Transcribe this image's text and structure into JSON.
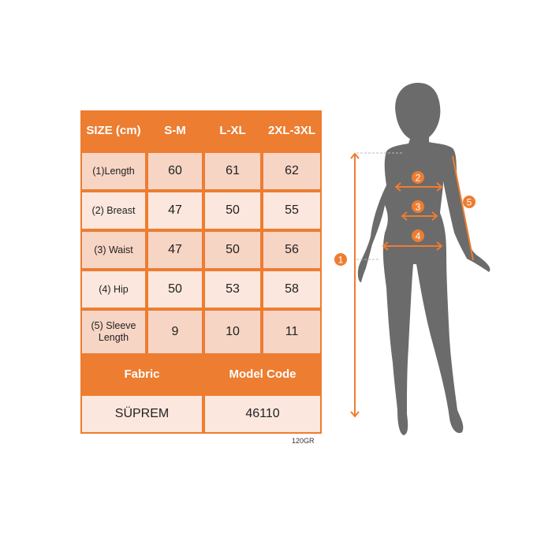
{
  "table": {
    "header": [
      "SIZE (cm)",
      "S-M",
      "L-XL",
      "2XL-3XL"
    ],
    "rows": [
      {
        "label": "(1)Length",
        "values": [
          "60",
          "61",
          "62"
        ]
      },
      {
        "label": "(2) Breast",
        "values": [
          "47",
          "50",
          "55"
        ]
      },
      {
        "label": "(3) Waist",
        "values": [
          "47",
          "50",
          "56"
        ]
      },
      {
        "label": "(4) Hip",
        "values": [
          "50",
          "53",
          "58"
        ]
      },
      {
        "label": "(5) Sleeve Length",
        "values": [
          "9",
          "10",
          "11"
        ]
      }
    ],
    "fabric_label": "Fabric",
    "model_code_label": "Model Code",
    "fabric_value": "SÜPREM",
    "model_code_value": "46110"
  },
  "weight_note": "120GR",
  "figure": {
    "markers": [
      "1",
      "2",
      "3",
      "4",
      "5"
    ],
    "accent_color": "#ED7D31",
    "silhouette_color": "#6B6B6B"
  }
}
